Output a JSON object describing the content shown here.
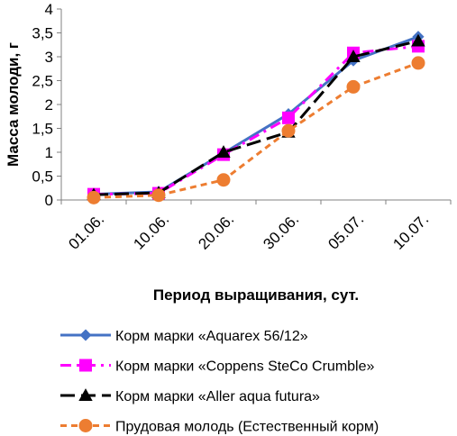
{
  "chart_data": {
    "type": "line",
    "categories": [
      "01.06.",
      "10.06.",
      "20.06.",
      "30.06.",
      "05.07.",
      "10.07."
    ],
    "xlabel": "Период выращивания, сут.",
    "ylabel": "Масса молоди, г",
    "ylim": [
      0,
      4
    ],
    "yticks": [
      "0",
      "0,5",
      "1",
      "1,5",
      "2",
      "2,5",
      "3",
      "3,5",
      "4"
    ],
    "grid": false,
    "legend_position": "bottom",
    "series": [
      {
        "name": "Корм марки «Aquarex 56/12»",
        "values": [
          0.12,
          0.17,
          0.98,
          1.8,
          2.92,
          3.42
        ],
        "color": "#4472C4",
        "marker": "diamond",
        "dash": "solid"
      },
      {
        "name": "Корм марки  «Coppens SteCo Crumble»",
        "values": [
          0.12,
          0.14,
          0.95,
          1.72,
          3.08,
          3.22
        ],
        "color": "#FF00FF",
        "marker": "square",
        "dash": "dashdot"
      },
      {
        "name": "Корм марки «Aller aqua futura»",
        "values": [
          0.11,
          0.15,
          1.0,
          1.42,
          3.0,
          3.33
        ],
        "color": "#000000",
        "marker": "triangle",
        "dash": "longdash"
      },
      {
        "name": "Прудовая молодь (Естественный корм)",
        "values": [
          0.05,
          0.1,
          0.42,
          1.45,
          2.37,
          2.87
        ],
        "color": "#ED7D31",
        "marker": "circle",
        "dash": "dash"
      }
    ]
  }
}
